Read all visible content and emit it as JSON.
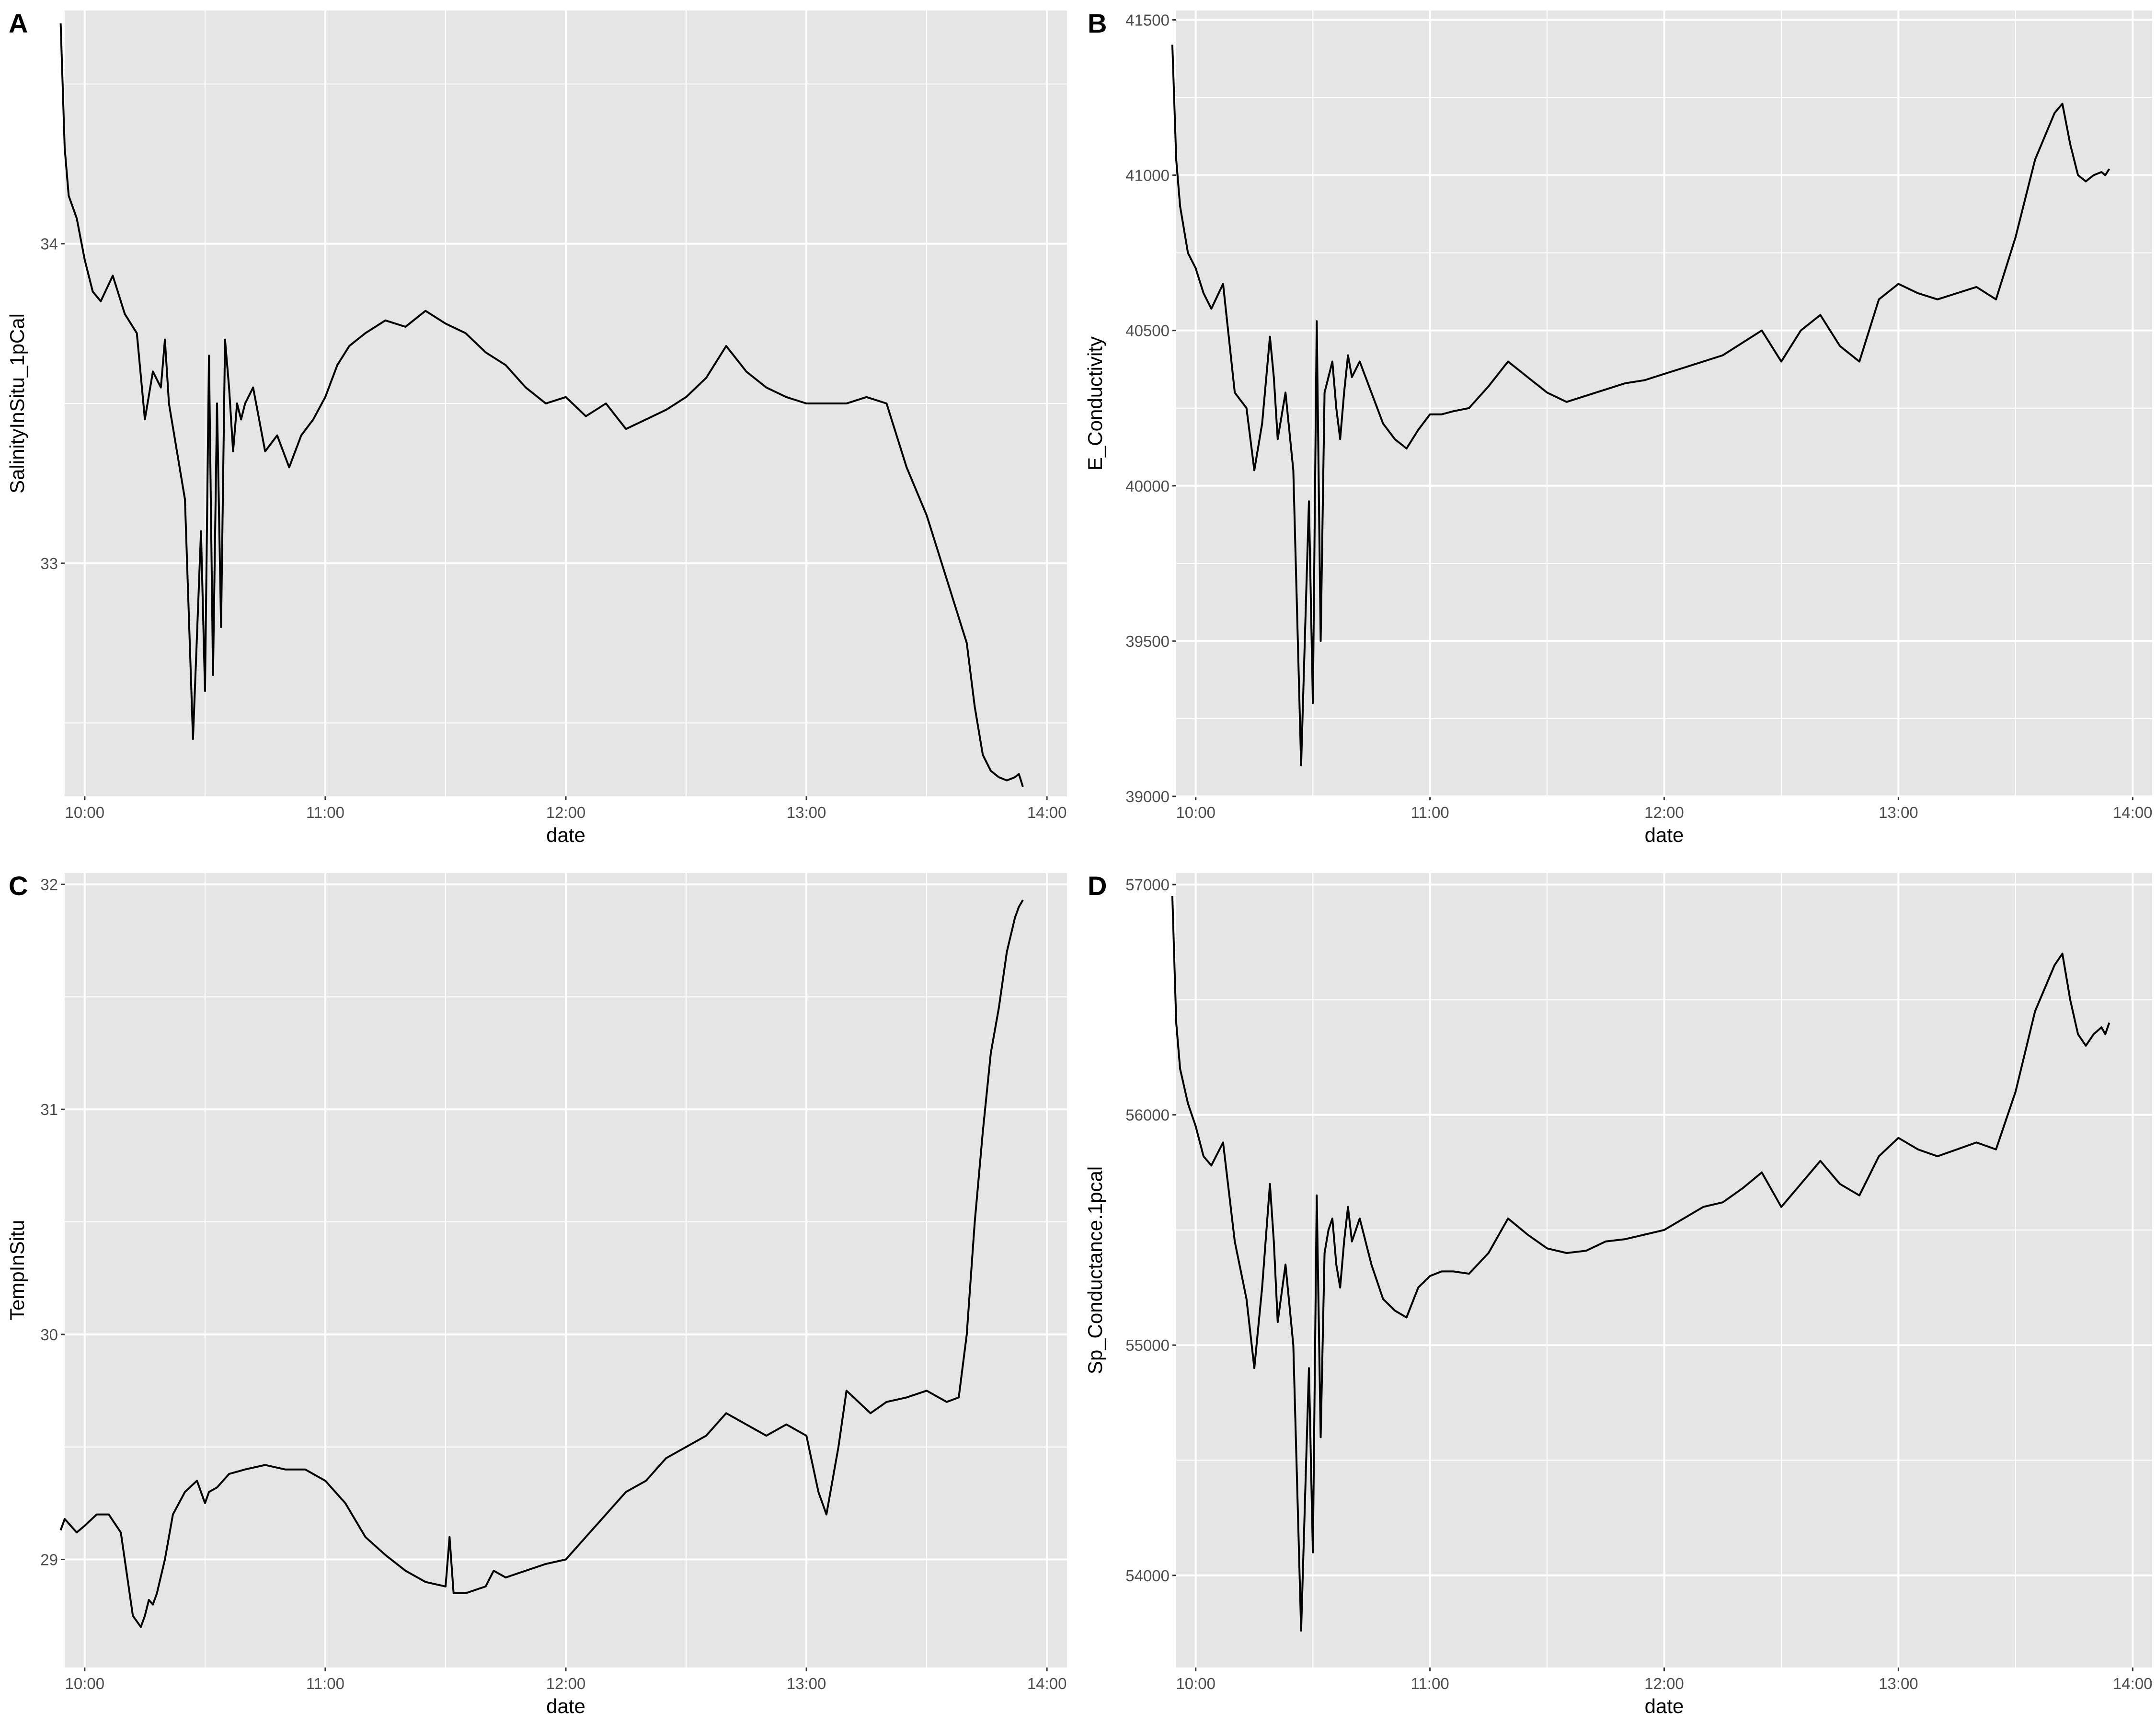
{
  "figure": {
    "background": "#ffffff",
    "panel_background": "#e5e5e5",
    "grid_color": "#ffffff",
    "line_color": "#000000"
  },
  "chart_data": [
    {
      "tag": "A",
      "type": "line",
      "xlabel": "date",
      "ylabel": "SalinityInSitu_1pCal",
      "xlim": [
        "09:55",
        "14:05"
      ],
      "ylim": [
        32.27,
        34.73
      ],
      "xticks": [
        "10:00",
        "11:00",
        "12:00",
        "13:00",
        "14:00"
      ],
      "yticks": [
        33,
        34
      ],
      "grid": true,
      "x": [
        "09:54",
        "09:55",
        "09:56",
        "09:58",
        "10:00",
        "10:02",
        "10:04",
        "10:07",
        "10:10",
        "10:13",
        "10:15",
        "10:17",
        "10:19",
        "10:20",
        "10:21",
        "10:23",
        "10:25",
        "10:27",
        "10:29",
        "10:30",
        "10:31",
        "10:32",
        "10:33",
        "10:34",
        "10:35",
        "10:36",
        "10:37",
        "10:38",
        "10:39",
        "10:40",
        "10:42",
        "10:45",
        "10:48",
        "10:51",
        "10:54",
        "10:57",
        "11:00",
        "11:03",
        "11:06",
        "11:10",
        "11:15",
        "11:20",
        "11:25",
        "11:30",
        "11:35",
        "11:40",
        "11:45",
        "11:50",
        "11:55",
        "12:00",
        "12:05",
        "12:10",
        "12:15",
        "12:20",
        "12:25",
        "12:30",
        "12:35",
        "12:40",
        "12:45",
        "12:50",
        "12:55",
        "13:00",
        "13:05",
        "13:10",
        "13:15",
        "13:20",
        "13:25",
        "13:30",
        "13:35",
        "13:40",
        "13:42",
        "13:44",
        "13:46",
        "13:48",
        "13:50",
        "13:52",
        "13:53",
        "13:54"
      ],
      "y": [
        34.69,
        34.3,
        34.15,
        34.08,
        33.95,
        33.85,
        33.82,
        33.9,
        33.78,
        33.72,
        33.45,
        33.6,
        33.55,
        33.7,
        33.5,
        33.35,
        33.2,
        32.45,
        33.1,
        32.6,
        33.65,
        32.65,
        33.5,
        32.8,
        33.7,
        33.55,
        33.35,
        33.5,
        33.45,
        33.5,
        33.55,
        33.35,
        33.4,
        33.3,
        33.4,
        33.45,
        33.52,
        33.62,
        33.68,
        33.72,
        33.76,
        33.74,
        33.79,
        33.75,
        33.72,
        33.66,
        33.62,
        33.55,
        33.5,
        33.52,
        33.46,
        33.5,
        33.42,
        33.45,
        33.48,
        33.52,
        33.58,
        33.68,
        33.6,
        33.55,
        33.52,
        33.5,
        33.5,
        33.5,
        33.52,
        33.5,
        33.3,
        33.15,
        32.95,
        32.75,
        32.55,
        32.4,
        32.35,
        32.33,
        32.32,
        32.33,
        32.34,
        32.3
      ]
    },
    {
      "tag": "B",
      "type": "line",
      "xlabel": "date",
      "ylabel": "E_Conductivity",
      "xlim": [
        "09:55",
        "14:05"
      ],
      "ylim": [
        39000,
        41530
      ],
      "xticks": [
        "10:00",
        "11:00",
        "12:00",
        "13:00",
        "14:00"
      ],
      "yticks": [
        39000,
        39500,
        40000,
        40500,
        41000,
        41500
      ],
      "grid": true,
      "x": [
        "09:54",
        "09:55",
        "09:56",
        "09:58",
        "10:00",
        "10:02",
        "10:04",
        "10:07",
        "10:10",
        "10:13",
        "10:15",
        "10:17",
        "10:19",
        "10:20",
        "10:21",
        "10:23",
        "10:25",
        "10:27",
        "10:29",
        "10:30",
        "10:31",
        "10:32",
        "10:33",
        "10:34",
        "10:35",
        "10:36",
        "10:37",
        "10:38",
        "10:39",
        "10:40",
        "10:42",
        "10:45",
        "10:48",
        "10:51",
        "10:54",
        "10:57",
        "11:00",
        "11:03",
        "11:06",
        "11:10",
        "11:15",
        "11:20",
        "11:25",
        "11:30",
        "11:35",
        "11:40",
        "11:45",
        "11:50",
        "11:55",
        "12:00",
        "12:05",
        "12:10",
        "12:15",
        "12:20",
        "12:25",
        "12:30",
        "12:35",
        "12:40",
        "12:45",
        "12:50",
        "12:55",
        "13:00",
        "13:05",
        "13:10",
        "13:15",
        "13:20",
        "13:25",
        "13:30",
        "13:35",
        "13:40",
        "13:42",
        "13:44",
        "13:46",
        "13:48",
        "13:50",
        "13:52",
        "13:53",
        "13:54"
      ],
      "y": [
        41420,
        41050,
        40900,
        40750,
        40700,
        40620,
        40570,
        40650,
        40300,
        40250,
        40050,
        40200,
        40480,
        40350,
        40150,
        40300,
        40050,
        39100,
        39950,
        39300,
        40530,
        39500,
        40300,
        40350,
        40400,
        40250,
        40150,
        40300,
        40420,
        40350,
        40400,
        40300,
        40200,
        40150,
        40120,
        40180,
        40230,
        40230,
        40240,
        40250,
        40320,
        40400,
        40350,
        40300,
        40270,
        40290,
        40310,
        40330,
        40340,
        40360,
        40380,
        40400,
        40420,
        40460,
        40500,
        40400,
        40500,
        40550,
        40450,
        40400,
        40600,
        40650,
        40620,
        40600,
        40620,
        40640,
        40600,
        40800,
        41050,
        41200,
        41230,
        41100,
        41000,
        40980,
        41000,
        41010,
        41000,
        41020
      ]
    },
    {
      "tag": "C",
      "type": "line",
      "xlabel": "date",
      "ylabel": "TempInSitu",
      "xlim": [
        "09:55",
        "14:05"
      ],
      "ylim": [
        28.52,
        32.05
      ],
      "xticks": [
        "10:00",
        "11:00",
        "12:00",
        "13:00",
        "14:00"
      ],
      "yticks": [
        29,
        30,
        31,
        32
      ],
      "grid": true,
      "x": [
        "09:54",
        "09:55",
        "09:58",
        "10:00",
        "10:03",
        "10:06",
        "10:09",
        "10:12",
        "10:14",
        "10:15",
        "10:16",
        "10:17",
        "10:18",
        "10:20",
        "10:22",
        "10:25",
        "10:28",
        "10:30",
        "10:31",
        "10:33",
        "10:36",
        "10:40",
        "10:45",
        "10:50",
        "10:55",
        "11:00",
        "11:05",
        "11:10",
        "11:15",
        "11:20",
        "11:25",
        "11:30",
        "11:31",
        "11:32",
        "11:35",
        "11:40",
        "11:42",
        "11:45",
        "11:50",
        "11:55",
        "12:00",
        "12:05",
        "12:10",
        "12:15",
        "12:20",
        "12:25",
        "12:30",
        "12:35",
        "12:40",
        "12:45",
        "12:50",
        "12:55",
        "13:00",
        "13:03",
        "13:05",
        "13:08",
        "13:10",
        "13:13",
        "13:16",
        "13:20",
        "13:25",
        "13:30",
        "13:35",
        "13:38",
        "13:40",
        "13:42",
        "13:44",
        "13:46",
        "13:48",
        "13:50",
        "13:52",
        "13:53",
        "13:54"
      ],
      "y": [
        29.13,
        29.18,
        29.12,
        29.15,
        29.2,
        29.2,
        29.12,
        28.75,
        28.7,
        28.75,
        28.82,
        28.8,
        28.85,
        29.0,
        29.2,
        29.3,
        29.35,
        29.25,
        29.3,
        29.32,
        29.38,
        29.4,
        29.42,
        29.4,
        29.4,
        29.35,
        29.25,
        29.1,
        29.02,
        28.95,
        28.9,
        28.88,
        29.1,
        28.85,
        28.85,
        28.88,
        28.95,
        28.92,
        28.95,
        28.98,
        29.0,
        29.1,
        29.2,
        29.3,
        29.35,
        29.45,
        29.5,
        29.55,
        29.65,
        29.6,
        29.55,
        29.6,
        29.55,
        29.3,
        29.2,
        29.5,
        29.75,
        29.7,
        29.65,
        29.7,
        29.72,
        29.75,
        29.7,
        29.72,
        30.0,
        30.5,
        30.9,
        31.25,
        31.45,
        31.7,
        31.85,
        31.9,
        31.93
      ]
    },
    {
      "tag": "D",
      "type": "line",
      "xlabel": "date",
      "ylabel": "Sp_Conductance.1pcal",
      "xlim": [
        "09:55",
        "14:05"
      ],
      "ylim": [
        53600,
        57050
      ],
      "xticks": [
        "10:00",
        "11:00",
        "12:00",
        "13:00",
        "14:00"
      ],
      "yticks": [
        54000,
        55000,
        56000,
        57000
      ],
      "grid": true,
      "x": [
        "09:54",
        "09:55",
        "09:56",
        "09:58",
        "10:00",
        "10:02",
        "10:04",
        "10:07",
        "10:10",
        "10:13",
        "10:15",
        "10:17",
        "10:19",
        "10:20",
        "10:21",
        "10:23",
        "10:25",
        "10:27",
        "10:29",
        "10:30",
        "10:31",
        "10:32",
        "10:33",
        "10:34",
        "10:35",
        "10:36",
        "10:37",
        "10:38",
        "10:39",
        "10:40",
        "10:42",
        "10:45",
        "10:48",
        "10:51",
        "10:54",
        "10:57",
        "11:00",
        "11:03",
        "11:06",
        "11:10",
        "11:15",
        "11:20",
        "11:25",
        "11:30",
        "11:35",
        "11:40",
        "11:45",
        "11:50",
        "11:55",
        "12:00",
        "12:05",
        "12:10",
        "12:15",
        "12:20",
        "12:25",
        "12:30",
        "12:35",
        "12:40",
        "12:45",
        "12:50",
        "12:55",
        "13:00",
        "13:05",
        "13:10",
        "13:15",
        "13:20",
        "13:25",
        "13:30",
        "13:35",
        "13:40",
        "13:42",
        "13:44",
        "13:46",
        "13:48",
        "13:50",
        "13:52",
        "13:53",
        "13:54"
      ],
      "y": [
        56950,
        56400,
        56200,
        56050,
        55950,
        55820,
        55780,
        55880,
        55450,
        55200,
        54900,
        55250,
        55700,
        55450,
        55100,
        55350,
        55000,
        53760,
        54900,
        54100,
        55650,
        54600,
        55400,
        55500,
        55550,
        55350,
        55250,
        55450,
        55600,
        55450,
        55550,
        55350,
        55200,
        55150,
        55120,
        55250,
        55300,
        55320,
        55320,
        55310,
        55400,
        55550,
        55480,
        55420,
        55400,
        55410,
        55450,
        55460,
        55480,
        55500,
        55550,
        55600,
        55620,
        55680,
        55750,
        55600,
        55700,
        55800,
        55700,
        55650,
        55820,
        55900,
        55850,
        55820,
        55850,
        55880,
        55850,
        56100,
        56450,
        56650,
        56700,
        56500,
        56350,
        56300,
        56350,
        56380,
        56350,
        56400
      ]
    }
  ]
}
